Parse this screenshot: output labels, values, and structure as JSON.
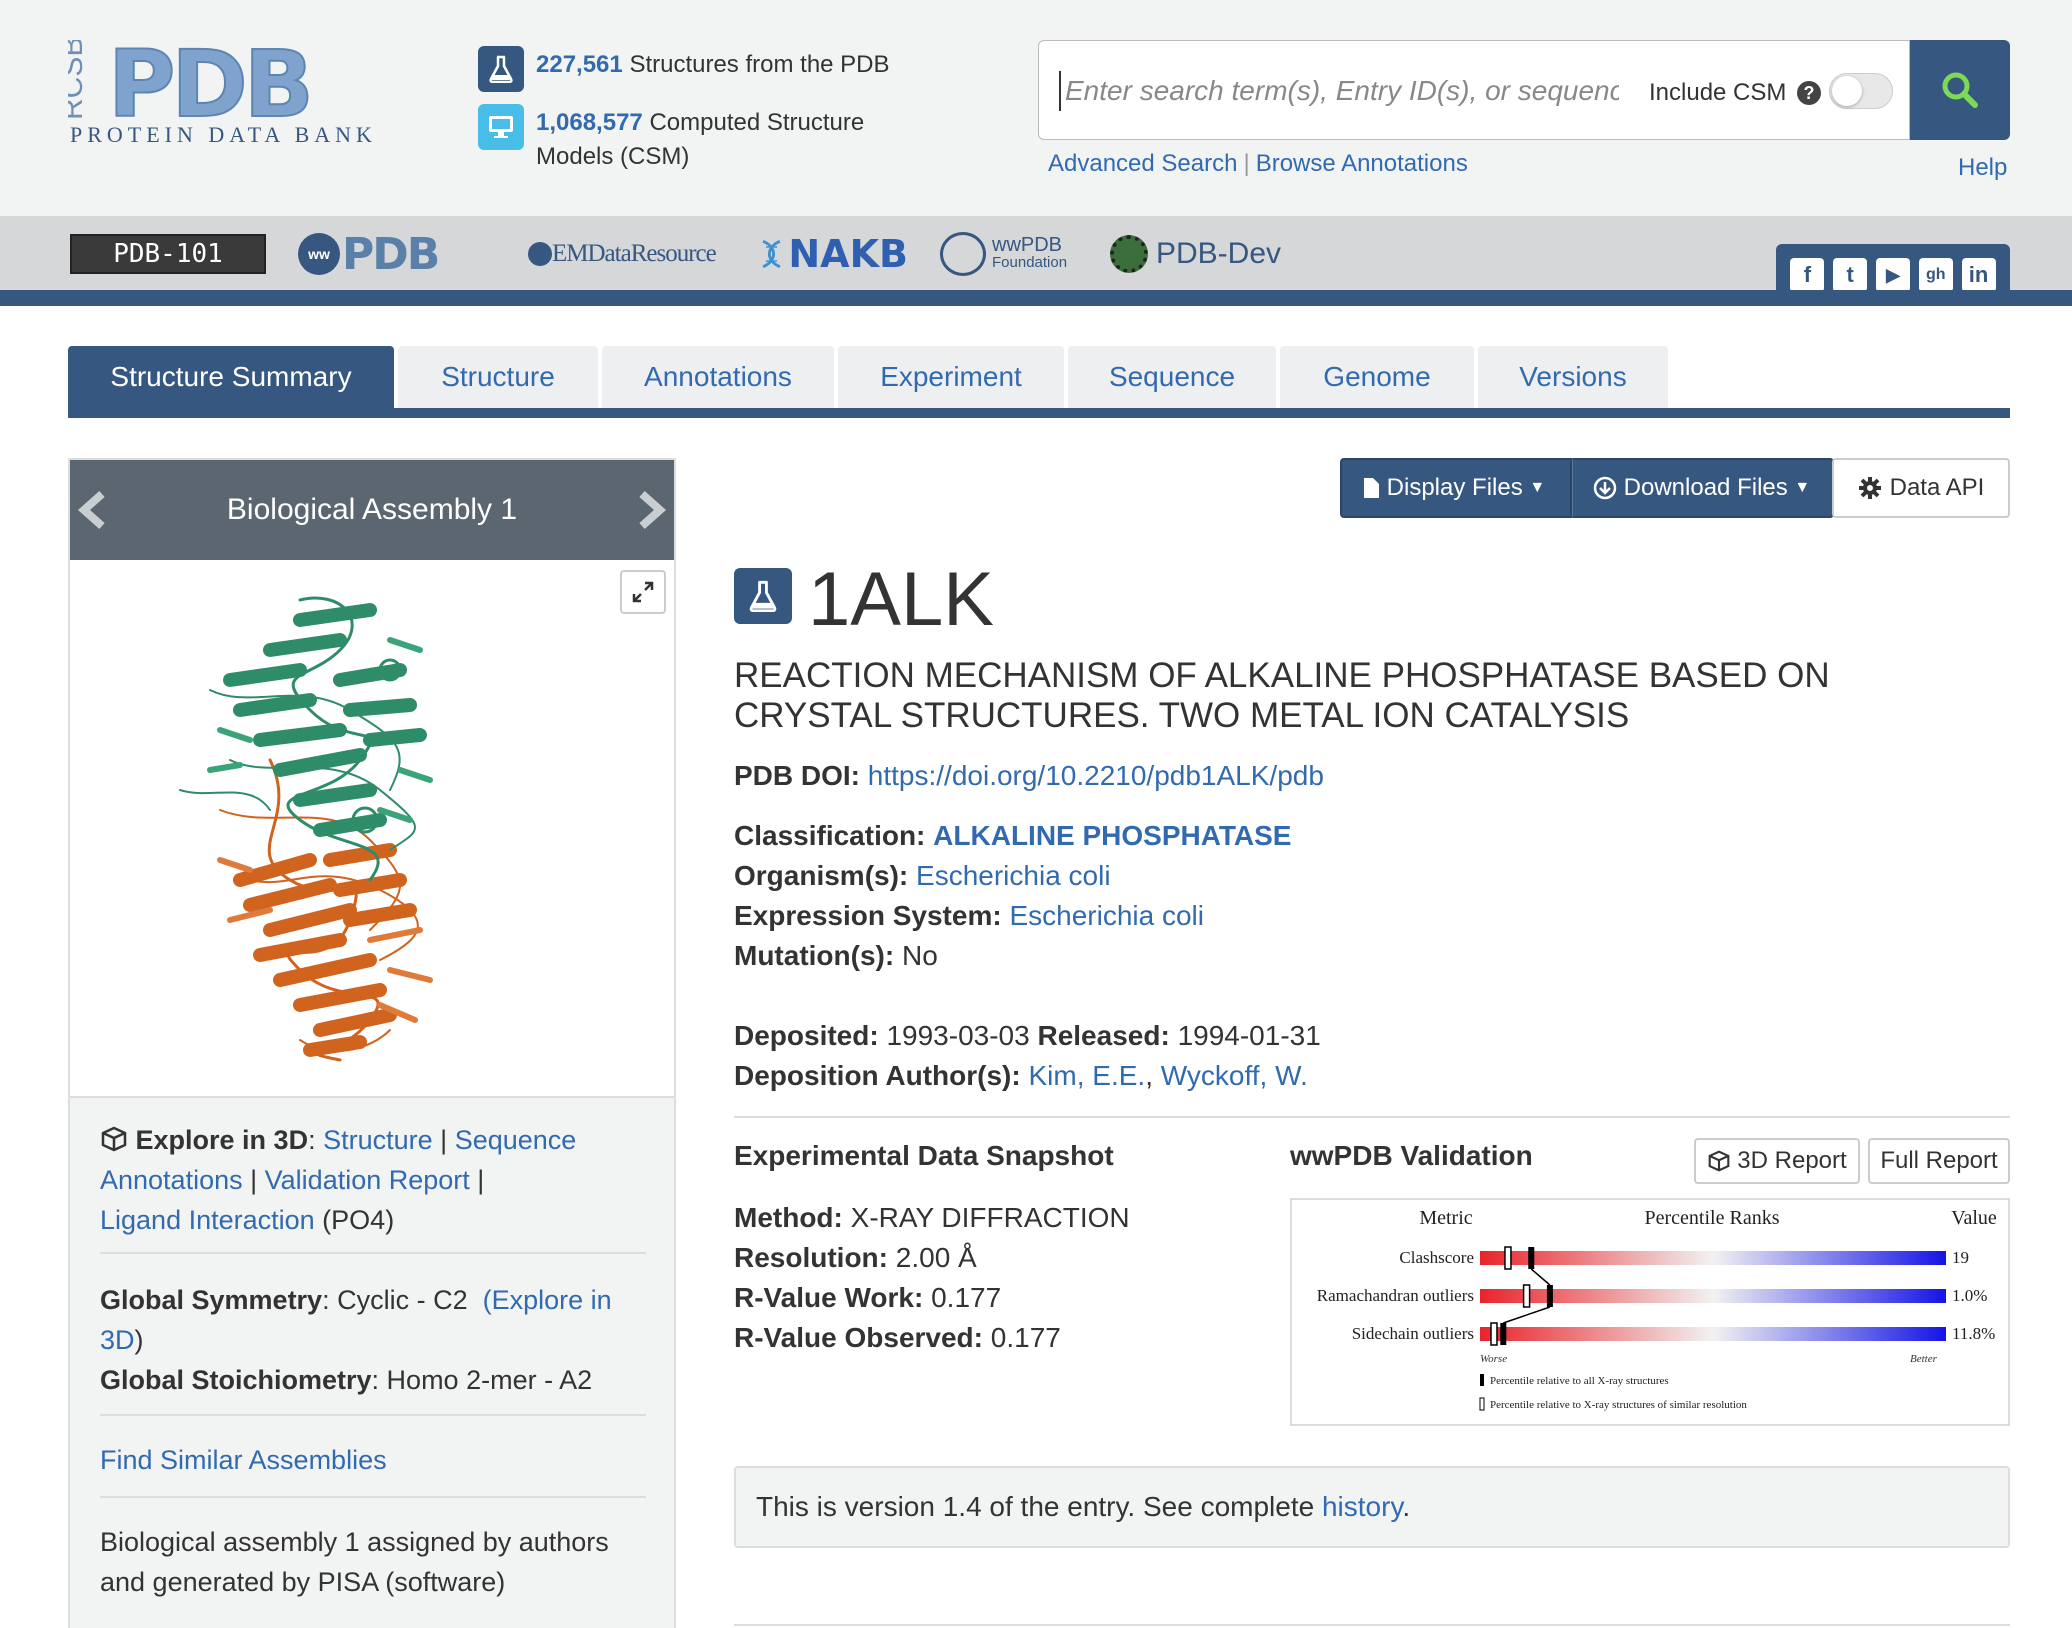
{
  "header": {
    "logo_text": "PDB",
    "logo_rcsb": "RCSB",
    "logo_sub": "PROTEIN DATA BANK",
    "stat1_count": "227,561",
    "stat1_label": "Structures from the PDB",
    "stat2_count": "1,068,577",
    "stat2_label_line1": "Computed Structure",
    "stat2_label_line2": "Models (CSM)",
    "search_placeholder": "Enter search term(s), Entry ID(s), or sequence",
    "csm_label": "Include CSM",
    "csm_help": "?",
    "advanced_search": "Advanced Search",
    "link_separator": "|",
    "browse_annotations": "Browse Annotations",
    "help": "Help"
  },
  "partners": {
    "pdb101": "PDB-101",
    "wwpdb": "PDB",
    "emdr": "EMDataResource",
    "nakb": "NAKB",
    "wwpdbf_line1": "wwPDB",
    "wwpdbf_line2": "Foundation",
    "pdbdev": "PDB-Dev"
  },
  "social": [
    "f",
    "t",
    "▶",
    "gh",
    "in"
  ],
  "tabs": [
    {
      "label": "Structure Summary",
      "active": true
    },
    {
      "label": "Structure"
    },
    {
      "label": "Annotations"
    },
    {
      "label": "Experiment"
    },
    {
      "label": "Sequence"
    },
    {
      "label": "Genome"
    },
    {
      "label": "Versions"
    }
  ],
  "left": {
    "assembly_title": "Biological Assembly 1",
    "explore_label": "Explore in 3D",
    "explore_colon": ":",
    "structure_link": "Structure",
    "sep": "|",
    "sequence_link": "Sequence",
    "annotations_link": "Annotations",
    "validation_link": "Validation Report",
    "ligand_link": "Ligand Interaction",
    "ligand_id": "(PO4)",
    "symmetry_label": "Global Symmetry",
    "symmetry_value": ": Cyclic - C2",
    "explore_in": "(Explore in",
    "explore_3d": "3D",
    "explore_close": ")",
    "stoich_label": "Global Stoichiometry",
    "stoich_value": ": Homo 2-mer - A2",
    "find_similar": "Find Similar Assemblies",
    "assembly_note_line1": "Biological assembly 1 assigned by authors",
    "assembly_note_line2": "and generated by PISA (software)"
  },
  "actions": {
    "display_files": "Display Files",
    "download_files": "Download Files",
    "data_api": "Data API"
  },
  "entry": {
    "id": "1ALK",
    "title_line1": "REACTION MECHANISM OF ALKALINE PHOSPHATASE BASED ON",
    "title_line2": "CRYSTAL STRUCTURES. TWO METAL ION CATALYSIS",
    "doi_label": "PDB DOI:",
    "doi_value": "https://doi.org/10.2210/pdb1ALK/pdb",
    "classification_label": "Classification:",
    "classification_value": "ALKALINE PHOSPHATASE",
    "organism_label": "Organism(s):",
    "organism_value": "Escherichia coli",
    "expression_label": "Expression System:",
    "expression_value": "Escherichia coli",
    "mutation_label": "Mutation(s):",
    "mutation_value": "No",
    "deposited_label": "Deposited:",
    "deposited_value": "1993-03-03",
    "released_label": "Released:",
    "released_value": "1994-01-31",
    "authors_label": "Deposition Author(s):",
    "author1": "Kim, E.E.",
    "author_sep": ",",
    "author2": "Wyckoff, W."
  },
  "snapshot": {
    "title": "Experimental Data Snapshot",
    "method_label": "Method:",
    "method_value": "X-RAY DIFFRACTION",
    "resolution_label": "Resolution:",
    "resolution_value": "2.00 Å",
    "rwork_label": "R-Value Work:",
    "rwork_value": "0.177",
    "robs_label": "R-Value Observed:",
    "robs_value": "0.177"
  },
  "validation": {
    "title": "wwPDB Validation",
    "report3d": "3D Report",
    "full_report": "Full Report",
    "col_metric": "Metric",
    "col_ranks": "Percentile Ranks",
    "col_value": "Value",
    "rows": [
      {
        "metric": "Clashscore",
        "value": "19",
        "all_pct": 0.11,
        "res_pct": 0.06
      },
      {
        "metric": "Ramachandran outliers",
        "value": "1.0%",
        "all_pct": 0.15,
        "res_pct": 0.1
      },
      {
        "metric": "Sidechain outliers",
        "value": "11.8%",
        "all_pct": 0.05,
        "res_pct": 0.03
      }
    ],
    "worse": "Worse",
    "better": "Better",
    "legend_all": "Percentile relative to all X-ray structures",
    "legend_res": "Percentile relative to X-ray structures of similar resolution",
    "colors": {
      "worse": "#e8242a",
      "mid": "#f2f2f2",
      "better": "#1414e6"
    }
  },
  "version": {
    "text": "This is version 1.4 of the entry. See complete",
    "link": "history",
    "end": "."
  }
}
